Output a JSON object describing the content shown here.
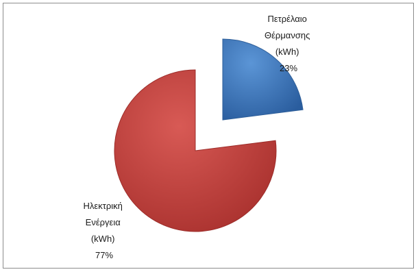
{
  "chart_data": {
    "type": "pie",
    "exploded": true,
    "slices": [
      {
        "name_lines": [
          "Πετρέλαιο",
          "Θέρμανσης",
          "(kWh)"
        ],
        "percent_label": "23%",
        "value": 23,
        "color": "#3a73b8"
      },
      {
        "name_lines": [
          "Ηλεκτρική",
          "Ενέργεια",
          "(kWh)"
        ],
        "percent_label": "77%",
        "value": 77,
        "color": "#c03a37"
      }
    ]
  }
}
